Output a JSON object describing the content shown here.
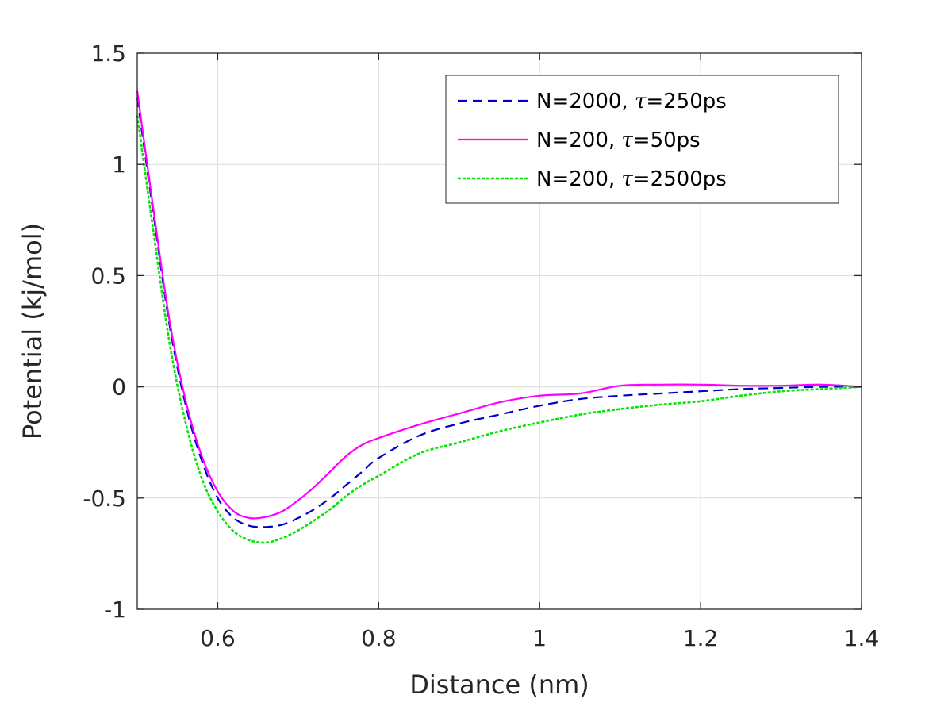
{
  "chart_data": {
    "type": "line",
    "title": "",
    "xlabel": "Distance (nm)",
    "ylabel": "Potential (kj/mol)",
    "xlim": [
      0.5,
      1.4
    ],
    "ylim": [
      -1,
      1.5
    ],
    "grid": true,
    "legend_position": "top-right",
    "x_ticks": [
      0.6,
      0.8,
      1.0,
      1.2,
      1.4
    ],
    "x_tick_labels": [
      "0.6",
      "0.8",
      "1",
      "1.2",
      "1.4"
    ],
    "y_ticks": [
      -1,
      -0.5,
      0,
      0.5,
      1,
      1.5
    ],
    "y_tick_labels": [
      "-1",
      "-0.5",
      "0",
      "0.5",
      "1",
      "1.5"
    ],
    "series": [
      {
        "name": "N=2000, τ=250ps",
        "label_prefix": "N=2000, ",
        "label_symbol": "τ",
        "label_suffix": "=250ps",
        "color": "#0000cc",
        "dash": "dashed",
        "x": [
          0.5,
          0.52,
          0.54,
          0.56,
          0.58,
          0.6,
          0.62,
          0.64,
          0.66,
          0.68,
          0.7,
          0.72,
          0.74,
          0.76,
          0.78,
          0.8,
          0.85,
          0.9,
          0.95,
          1.0,
          1.05,
          1.1,
          1.15,
          1.2,
          1.25,
          1.3,
          1.35,
          1.4
        ],
        "y": [
          1.3,
          0.78,
          0.28,
          -0.08,
          -0.33,
          -0.5,
          -0.59,
          -0.625,
          -0.63,
          -0.62,
          -0.59,
          -0.55,
          -0.5,
          -0.44,
          -0.38,
          -0.32,
          -0.22,
          -0.165,
          -0.125,
          -0.085,
          -0.055,
          -0.04,
          -0.03,
          -0.02,
          -0.01,
          -0.005,
          0.0,
          0.0
        ]
      },
      {
        "name": "N=200, τ=50ps",
        "label_prefix": "N=200, ",
        "label_symbol": "τ",
        "label_suffix": "=50ps",
        "color": "#ff00ff",
        "dash": "solid",
        "x": [
          0.5,
          0.52,
          0.54,
          0.56,
          0.58,
          0.6,
          0.62,
          0.64,
          0.66,
          0.68,
          0.7,
          0.72,
          0.74,
          0.76,
          0.78,
          0.8,
          0.85,
          0.9,
          0.95,
          1.0,
          1.05,
          1.1,
          1.15,
          1.2,
          1.25,
          1.3,
          1.35,
          1.4
        ],
        "y": [
          1.33,
          0.8,
          0.3,
          -0.06,
          -0.31,
          -0.47,
          -0.56,
          -0.59,
          -0.585,
          -0.56,
          -0.51,
          -0.45,
          -0.38,
          -0.31,
          -0.26,
          -0.23,
          -0.17,
          -0.12,
          -0.07,
          -0.04,
          -0.03,
          0.005,
          0.01,
          0.01,
          0.005,
          0.005,
          0.01,
          0.0
        ]
      },
      {
        "name": "N=200, τ=2500ps",
        "label_prefix": "N=200, ",
        "label_symbol": "τ",
        "label_suffix": "=2500ps",
        "color": "#00e600",
        "dash": "dotted",
        "x": [
          0.5,
          0.52,
          0.54,
          0.56,
          0.58,
          0.6,
          0.62,
          0.64,
          0.66,
          0.68,
          0.7,
          0.72,
          0.74,
          0.76,
          0.78,
          0.8,
          0.85,
          0.9,
          0.95,
          1.0,
          1.05,
          1.1,
          1.15,
          1.2,
          1.25,
          1.3,
          1.35,
          1.4
        ],
        "y": [
          1.22,
          0.7,
          0.2,
          -0.16,
          -0.41,
          -0.56,
          -0.65,
          -0.69,
          -0.7,
          -0.68,
          -0.645,
          -0.6,
          -0.55,
          -0.49,
          -0.44,
          -0.4,
          -0.3,
          -0.25,
          -0.2,
          -0.16,
          -0.125,
          -0.1,
          -0.08,
          -0.065,
          -0.04,
          -0.02,
          -0.01,
          0.0
        ]
      }
    ]
  }
}
